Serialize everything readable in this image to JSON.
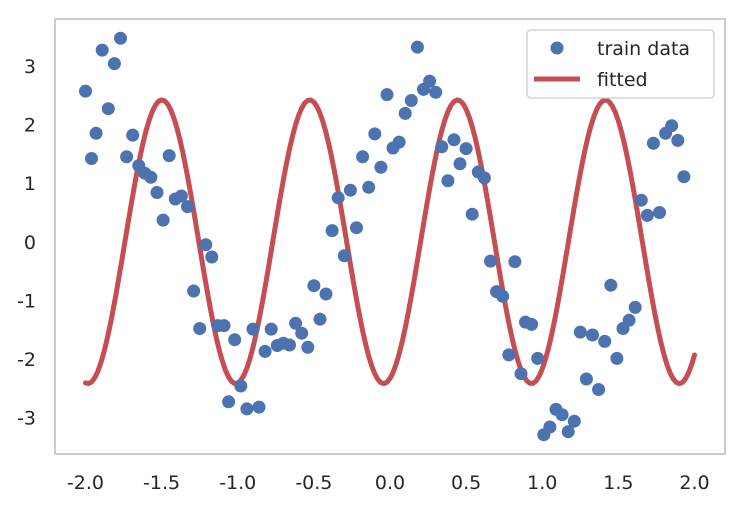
{
  "chart_data": {
    "type": "scatter",
    "title": "",
    "xlabel": "",
    "ylabel": "",
    "xlim": [
      -2.2,
      2.2
    ],
    "ylim": [
      -3.62,
      3.8
    ],
    "grid": false,
    "legend_position": "top-right",
    "xticks": [
      -2.0,
      -1.5,
      -1.0,
      -0.5,
      0.0,
      0.5,
      1.0,
      1.5,
      2.0
    ],
    "xtick_labels": [
      "-2.0",
      "-1.5",
      "-1.0",
      "-0.5",
      "0.0",
      "0.5",
      "1.0",
      "1.5",
      "2.0"
    ],
    "yticks": [
      3,
      2,
      1,
      0,
      -1,
      -2,
      -3
    ],
    "ytick_labels": [
      "3",
      "2",
      "1",
      "0",
      "-1",
      "-2",
      "-3"
    ],
    "series": [
      {
        "name": "train data",
        "kind": "points",
        "color": "#4c72b0",
        "points": [
          [
            -2.0,
            2.57
          ],
          [
            -1.96,
            1.42
          ],
          [
            -1.93,
            1.85
          ],
          [
            -1.89,
            3.27
          ],
          [
            -1.85,
            2.27
          ],
          [
            -1.81,
            3.04
          ],
          [
            -1.77,
            3.47
          ],
          [
            -1.73,
            1.45
          ],
          [
            -1.69,
            1.82
          ],
          [
            -1.65,
            1.3
          ],
          [
            -1.61,
            1.17
          ],
          [
            -1.57,
            1.1
          ],
          [
            -1.53,
            0.84
          ],
          [
            -1.49,
            0.37
          ],
          [
            -1.45,
            1.47
          ],
          [
            -1.41,
            0.73
          ],
          [
            -1.37,
            0.78
          ],
          [
            -1.33,
            0.6
          ],
          [
            -1.29,
            -0.84
          ],
          [
            -1.25,
            -1.48
          ],
          [
            -1.21,
            -0.05
          ],
          [
            -1.17,
            -0.26
          ],
          [
            -1.13,
            -1.43
          ],
          [
            -1.09,
            -1.43
          ],
          [
            -1.06,
            -2.73
          ],
          [
            -1.02,
            -1.67
          ],
          [
            -0.98,
            -2.46
          ],
          [
            -0.94,
            -2.85
          ],
          [
            -0.9,
            -1.49
          ],
          [
            -0.86,
            -2.82
          ],
          [
            -0.82,
            -1.87
          ],
          [
            -0.78,
            -1.49
          ],
          [
            -0.74,
            -1.77
          ],
          [
            -0.7,
            -1.73
          ],
          [
            -0.66,
            -1.76
          ],
          [
            -0.62,
            -1.39
          ],
          [
            -0.58,
            -1.56
          ],
          [
            -0.54,
            -1.8
          ],
          [
            -0.5,
            -0.75
          ],
          [
            -0.46,
            -1.32
          ],
          [
            -0.42,
            -0.89
          ],
          [
            -0.38,
            0.19
          ],
          [
            -0.34,
            0.75
          ],
          [
            -0.3,
            -0.24
          ],
          [
            -0.26,
            0.88
          ],
          [
            -0.22,
            0.24
          ],
          [
            -0.18,
            1.45
          ],
          [
            -0.14,
            0.93
          ],
          [
            -0.1,
            1.84
          ],
          [
            -0.06,
            1.27
          ],
          [
            -0.02,
            2.51
          ],
          [
            0.02,
            1.6
          ],
          [
            0.06,
            1.7
          ],
          [
            0.1,
            2.19
          ],
          [
            0.14,
            2.41
          ],
          [
            0.18,
            3.32
          ],
          [
            0.22,
            2.6
          ],
          [
            0.26,
            2.74
          ],
          [
            0.3,
            2.55
          ],
          [
            0.34,
            1.62
          ],
          [
            0.38,
            1.04
          ],
          [
            0.42,
            1.74
          ],
          [
            0.46,
            1.33
          ],
          [
            0.5,
            1.59
          ],
          [
            0.54,
            0.47
          ],
          [
            0.58,
            1.19
          ],
          [
            0.62,
            1.09
          ],
          [
            0.66,
            -0.33
          ],
          [
            0.7,
            -0.85
          ],
          [
            0.74,
            -0.93
          ],
          [
            0.78,
            -1.93
          ],
          [
            0.82,
            -0.34
          ],
          [
            0.86,
            -2.25
          ],
          [
            0.89,
            -1.37
          ],
          [
            0.93,
            -1.41
          ],
          [
            0.97,
            -1.99
          ],
          [
            1.01,
            -3.29
          ],
          [
            1.05,
            -3.16
          ],
          [
            1.09,
            -2.86
          ],
          [
            1.13,
            -2.95
          ],
          [
            1.17,
            -3.24
          ],
          [
            1.21,
            -3.06
          ],
          [
            1.25,
            -1.54
          ],
          [
            1.29,
            -2.34
          ],
          [
            1.33,
            -1.59
          ],
          [
            1.37,
            -2.52
          ],
          [
            1.41,
            -1.7
          ],
          [
            1.45,
            -0.74
          ],
          [
            1.49,
            -1.99
          ],
          [
            1.53,
            -1.48
          ],
          [
            1.57,
            -1.34
          ],
          [
            1.61,
            -1.12
          ],
          [
            1.65,
            0.71
          ],
          [
            1.69,
            0.45
          ],
          [
            1.73,
            1.68
          ],
          [
            1.77,
            0.5
          ],
          [
            1.81,
            1.85
          ],
          [
            1.85,
            1.98
          ],
          [
            1.89,
            1.73
          ],
          [
            1.93,
            1.11
          ]
        ]
      },
      {
        "name": "fitted",
        "kind": "line",
        "color": "#c44e52",
        "curve": {
          "amplitude": 2.42,
          "frequency": 1.03,
          "phase": -1.3,
          "x_from": -2.0,
          "x_to": 2.0
        }
      }
    ]
  }
}
